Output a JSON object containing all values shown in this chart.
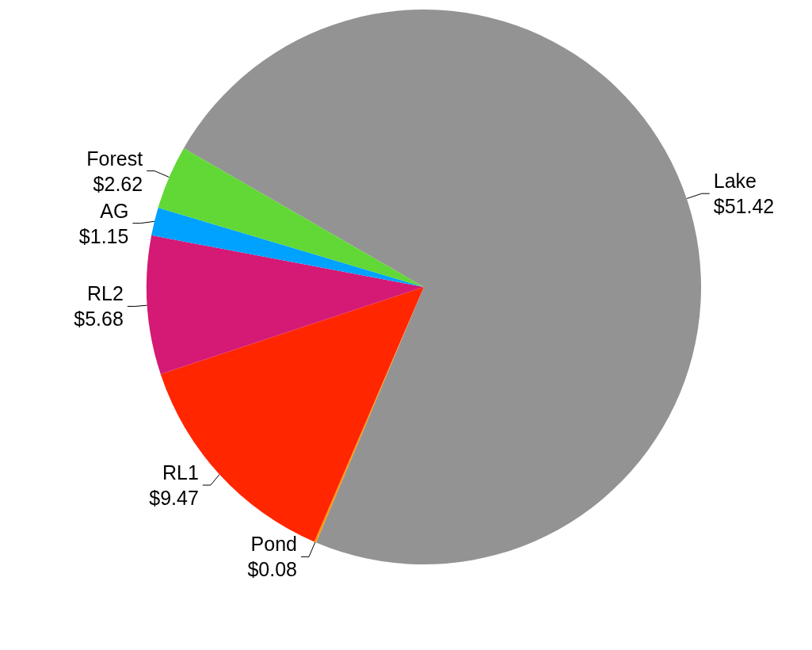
{
  "chart_data": {
    "type": "pie",
    "categories": [
      "Lake",
      "Pond",
      "RL1",
      "RL2",
      "AG",
      "Forest"
    ],
    "values": [
      51.42,
      0.08,
      9.47,
      5.68,
      1.15,
      2.62
    ],
    "value_labels": [
      "$51.42",
      "$0.08",
      "$9.47",
      "$5.68",
      "$1.15",
      "$2.62"
    ],
    "colors": [
      "#939393",
      "#ff9500",
      "#ff2600",
      "#d41a75",
      "#00a2ff",
      "#61d836"
    ],
    "legend": false
  }
}
